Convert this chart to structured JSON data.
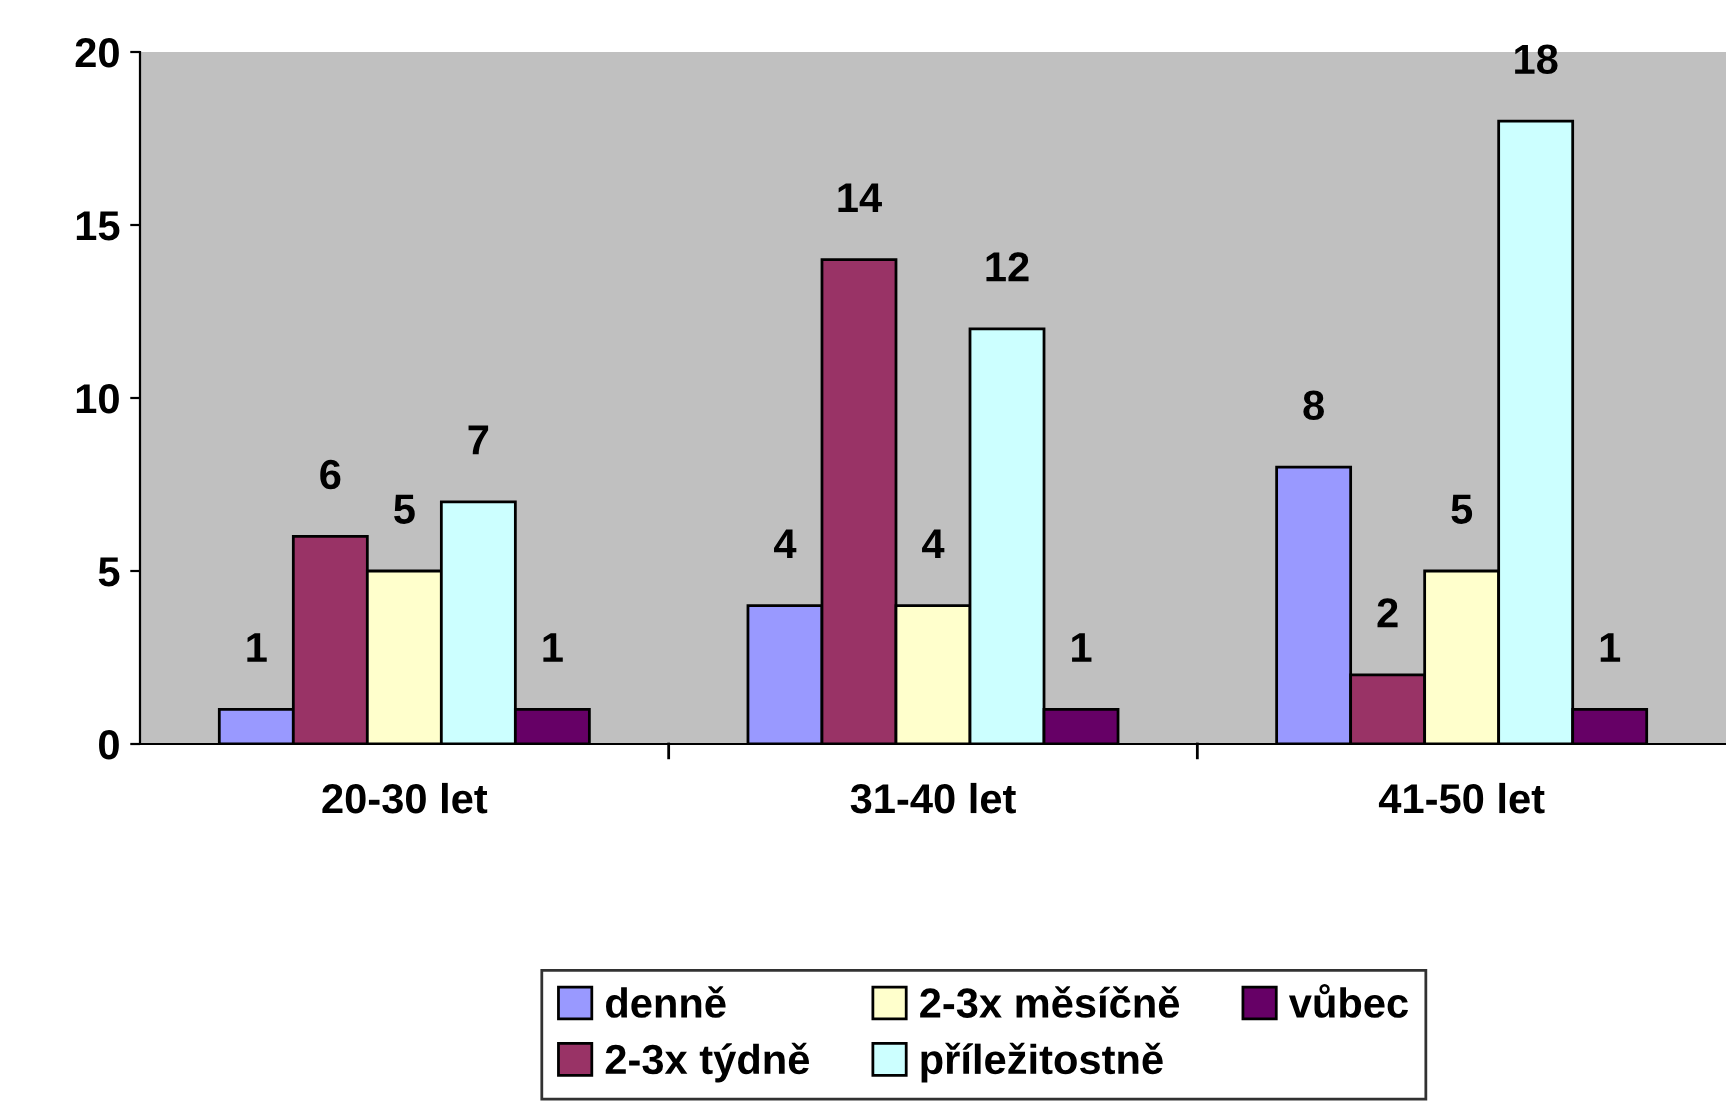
{
  "chart_data": {
    "type": "bar",
    "categories": [
      "20-30 let",
      "31-40 let",
      "41-50 let"
    ],
    "series": [
      {
        "name": "denně",
        "color": "#9999ff",
        "values": [
          1,
          4,
          8
        ]
      },
      {
        "name": "2-3x týdně",
        "color": "#993366",
        "values": [
          6,
          14,
          2
        ]
      },
      {
        "name": "2-3x měsíčně",
        "color": "#ffffcc",
        "values": [
          5,
          4,
          5
        ]
      },
      {
        "name": "příležitostně",
        "color": "#ccffff",
        "values": [
          7,
          12,
          18
        ]
      },
      {
        "name": "vůbec",
        "color": "#660066",
        "values": [
          1,
          1,
          1
        ]
      }
    ],
    "ylim": [
      0,
      20
    ],
    "yticks": [
      0,
      5,
      10,
      15,
      20
    ],
    "grid": false,
    "legend": "bottom",
    "data_labels": true
  }
}
